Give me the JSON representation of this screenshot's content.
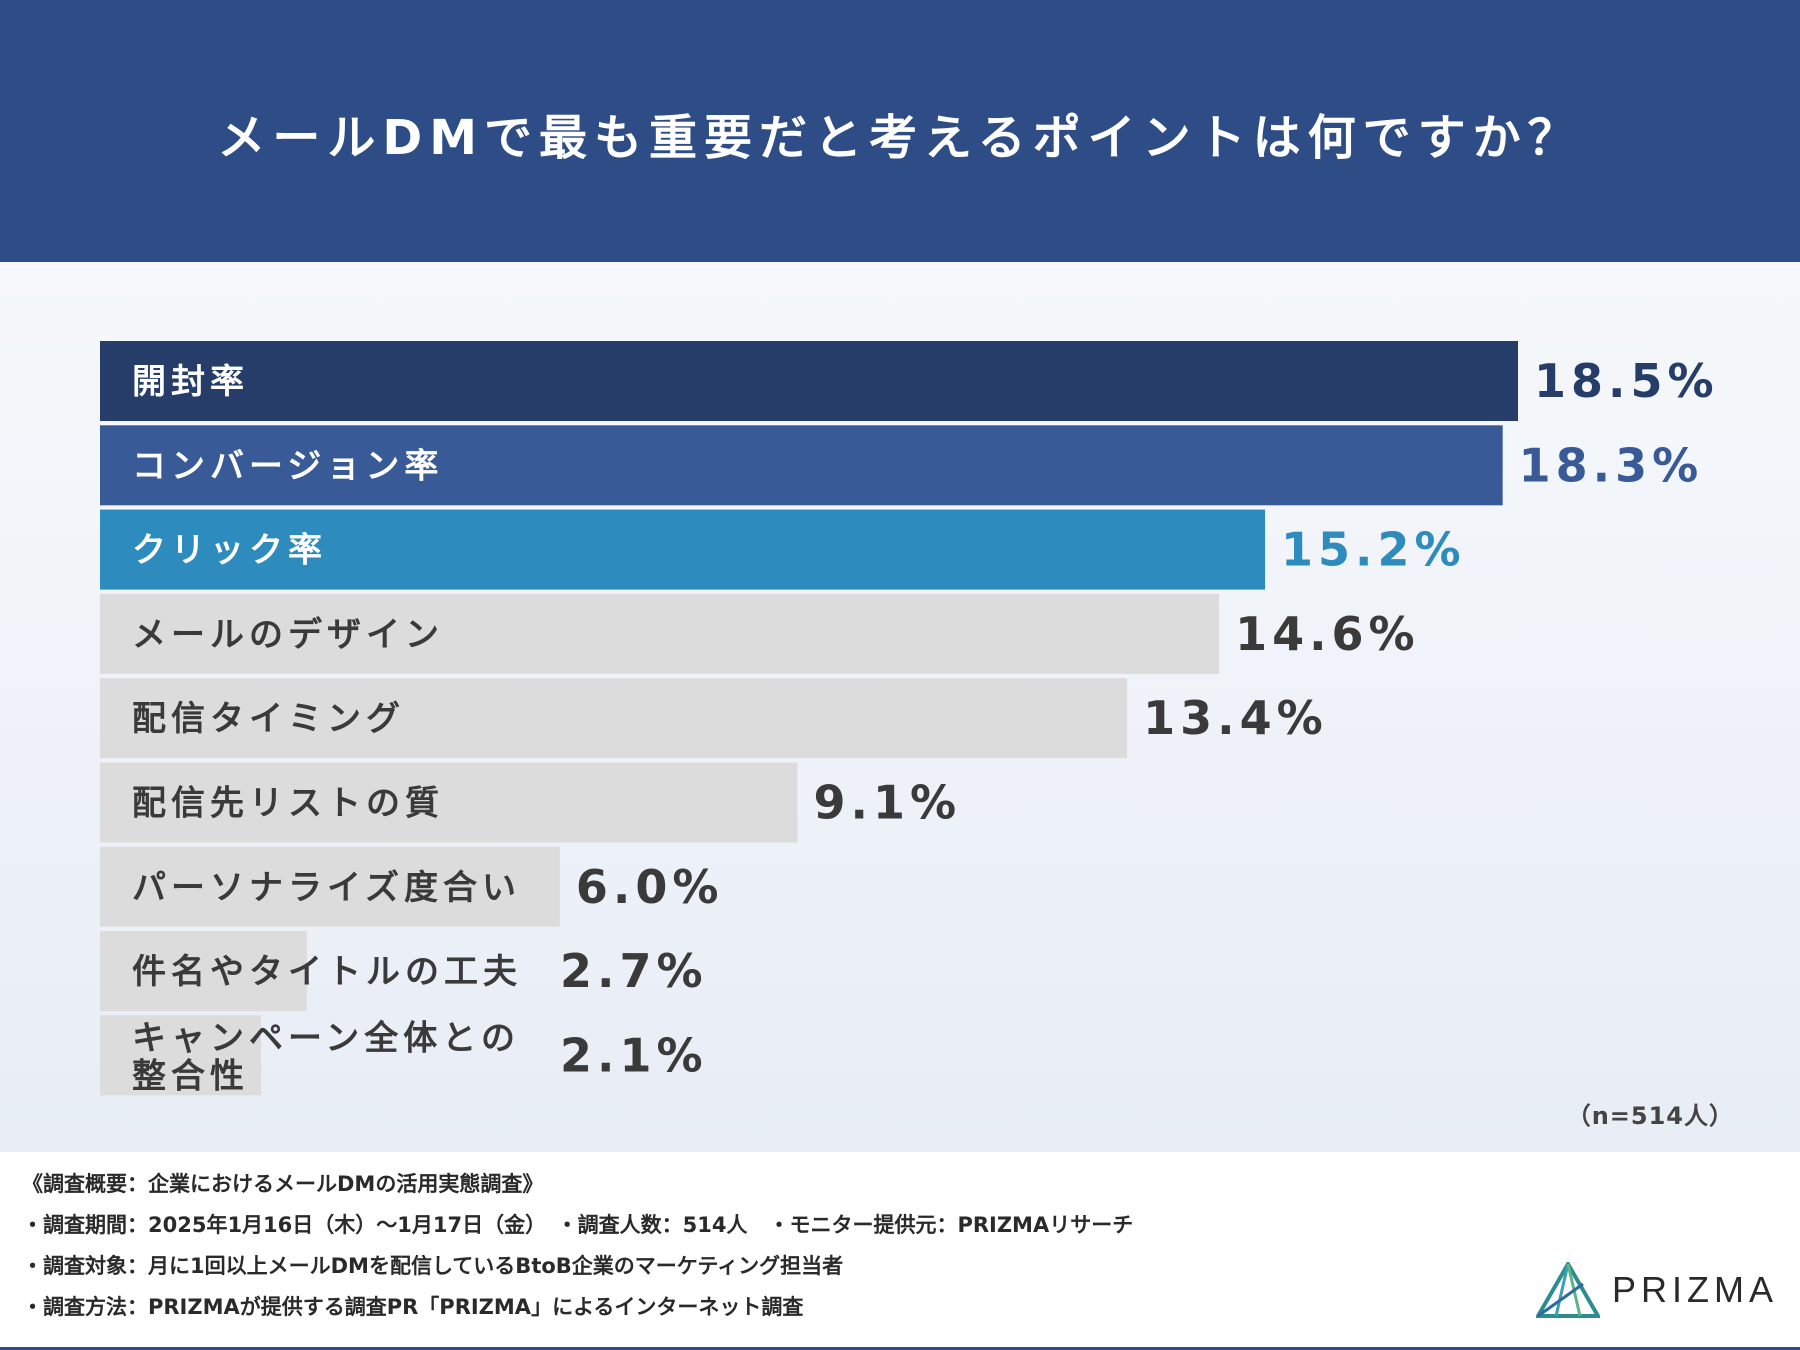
{
  "header": {
    "title": "メールDMで最も重要だと考えるポイントは何ですか？"
  },
  "chart_data": {
    "type": "bar",
    "orientation": "horizontal",
    "title": "メールDMで最も重要だと考えるポイントは何ですか？",
    "categories": [
      "開封率",
      "コンバージョン率",
      "クリック率",
      "メールのデザイン",
      "配信タイミング",
      "配信先リストの質",
      "パーソナライズ度合い",
      "件名やタイトルの工夫",
      "キャンペーン全体との整合性"
    ],
    "category_lines": [
      [
        "開封率"
      ],
      [
        "コンバージョン率"
      ],
      [
        "クリック率"
      ],
      [
        "メールのデザイン"
      ],
      [
        "配信タイミング"
      ],
      [
        "配信先リストの質"
      ],
      [
        "パーソナライズ度合い"
      ],
      [
        "件名やタイトルの工夫"
      ],
      [
        "キャンペーン全体との",
        "整合性"
      ]
    ],
    "values": [
      18.5,
      18.3,
      15.2,
      14.6,
      13.4,
      9.1,
      6.0,
      2.7,
      2.1
    ],
    "value_labels": [
      "18.5%",
      "18.3%",
      "15.2%",
      "14.6%",
      "13.4%",
      "9.1%",
      "6.0%",
      "2.7%",
      "2.1%"
    ],
    "xlim": [
      0,
      18.5
    ],
    "colors": {
      "top1": "#263d69",
      "top2": "#385a96",
      "top3": "#2d8bbd",
      "other": "#dcdcdc",
      "other_value": "#3a3a3a",
      "highlight_text": "#ffffff",
      "other_text": "#3a3a3a"
    },
    "grid": false,
    "legend": "none"
  },
  "note": "（n=514人）",
  "footer": {
    "summary": "《調査概要：企業におけるメールDMの活用実態調査》",
    "period": "・調査期間：2025年1月16日（木）～1月17日（金）　・調査人数：514人　・モニター提供元：PRIZMAリサーチ",
    "target": "・調査対象：月に1回以上メールDMを配信しているBtoB企業のマーケティング担当者",
    "method": "・調査方法：PRIZMAが提供する調査PR「PRIZMA」によるインターネット調査"
  },
  "logo": {
    "text": "PRIZMA",
    "icon": "prism-triangle-icon"
  }
}
